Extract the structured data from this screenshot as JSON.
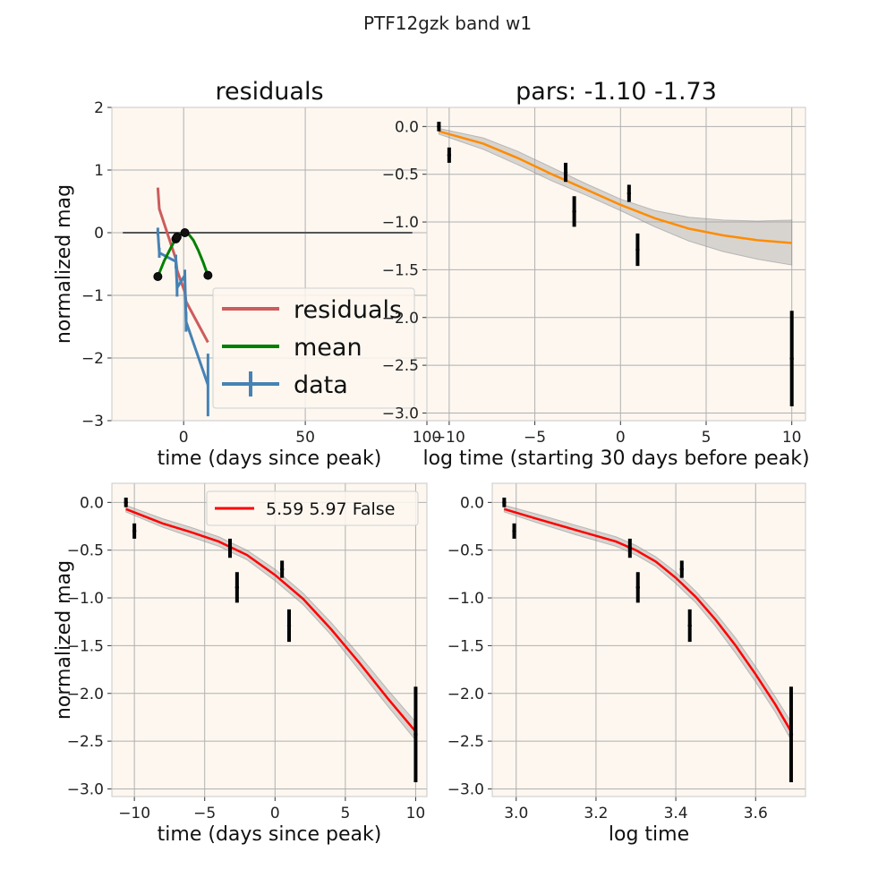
{
  "figure": {
    "suptitle": "PTF12gzk band w1"
  },
  "colors": {
    "axes_bg": "#fdf7f0",
    "grid": "#b0b0b0",
    "spine": "#c8c8c8",
    "residuals": "#cd5c5c",
    "mean": "#008000",
    "data": "#4682b4",
    "baseline": "#555555",
    "fit_orange": "#ff8c00",
    "fit_red": "#ff0000",
    "band": "#a9a9a9",
    "points": "#000000"
  },
  "chart_data": [
    {
      "id": "residuals",
      "type": "line",
      "title": "residuals",
      "xlabel": "time (days since peak)",
      "ylabel": "normalized mag",
      "xlim": [
        -29.5,
        100
      ],
      "ylim": [
        -3,
        2
      ],
      "xticks": [
        0,
        50,
        100
      ],
      "yticks": [
        -3,
        -2,
        -1,
        0,
        1,
        2
      ],
      "xtick_labels": [
        "0",
        "50",
        "100"
      ],
      "ytick_labels": [
        "−3",
        "−2",
        "−1",
        "0",
        "1",
        "2"
      ],
      "grid": true,
      "legend": {
        "position": "lower-right",
        "entries": [
          "residuals",
          "mean",
          "data"
        ]
      },
      "baseline": {
        "x": [
          -25,
          94
        ],
        "y": 0
      },
      "series": [
        {
          "name": "residuals",
          "x": [
            -10.6,
            -10,
            -3.2,
            -2.7,
            0.5,
            1,
            10
          ],
          "y": [
            0.72,
            0.38,
            -0.42,
            -0.6,
            -0.95,
            -1.1,
            -1.75
          ]
        },
        {
          "name": "mean",
          "x": [
            -10.6,
            -8,
            -5,
            -3,
            -1,
            0.5,
            2,
            4,
            6,
            8,
            10
          ],
          "y": [
            -0.7,
            -0.45,
            -0.22,
            -0.08,
            -0.02,
            0.0,
            -0.02,
            -0.12,
            -0.28,
            -0.47,
            -0.69
          ]
        },
        {
          "name": "data",
          "x": [
            -10.6,
            -10,
            -3.2,
            -2.7,
            0.5,
            1,
            10
          ],
          "y": [
            0.02,
            -0.32,
            -0.46,
            -0.88,
            -0.68,
            -1.42,
            -2.43
          ],
          "yerr": [
            0.06,
            0.08,
            0.11,
            0.14,
            0.09,
            0.16,
            0.5
          ]
        }
      ],
      "markers": {
        "x": [
          -10.6,
          -3.2,
          -2.7,
          0.5,
          10
        ],
        "y": [
          -0.7,
          -0.1,
          -0.07,
          0.0,
          -0.68
        ]
      }
    },
    {
      "id": "pars",
      "type": "line",
      "title": "pars: -1.10 -1.73",
      "xlabel": "log time (starting 30 days before peak)",
      "ylabel": "",
      "xlim": [
        -11.3,
        10.8
      ],
      "ylim": [
        -3.08,
        0.2
      ],
      "xticks": [
        -10,
        -5,
        0,
        5,
        10
      ],
      "yticks": [
        -3,
        -2.5,
        -2,
        -1.5,
        -1,
        -0.5,
        0
      ],
      "xtick_labels": [
        "−10",
        "−5",
        "0",
        "5",
        "10"
      ],
      "ytick_labels": [
        "−3.0",
        "−2.5",
        "−2.0",
        "−1.5",
        "−1.0",
        "−0.5",
        "0.0"
      ],
      "grid": true,
      "points": {
        "x": [
          -10.6,
          -10,
          -3.2,
          -2.7,
          0.5,
          1,
          10
        ],
        "y": [
          0.0,
          -0.3,
          -0.48,
          -0.89,
          -0.7,
          -1.29,
          -2.43
        ],
        "yerr": [
          0.05,
          0.08,
          0.1,
          0.16,
          0.09,
          0.17,
          0.5
        ]
      },
      "fit": {
        "x": [
          -10.6,
          -8,
          -6,
          -4,
          -2,
          0,
          2,
          4,
          6,
          8,
          10
        ],
        "y": [
          -0.05,
          -0.18,
          -0.33,
          -0.5,
          -0.66,
          -0.82,
          -0.96,
          -1.07,
          -1.14,
          -1.19,
          -1.22
        ],
        "band_upper": [
          -0.02,
          -0.12,
          -0.26,
          -0.43,
          -0.6,
          -0.76,
          -0.88,
          -0.95,
          -0.98,
          -0.99,
          -0.98
        ],
        "band_lower": [
          -0.08,
          -0.24,
          -0.4,
          -0.57,
          -0.72,
          -0.88,
          -1.05,
          -1.2,
          -1.31,
          -1.39,
          -1.45
        ]
      }
    },
    {
      "id": "time",
      "type": "line",
      "title": "",
      "xlabel": "time (days since peak)",
      "ylabel": "normalized mag",
      "xlim": [
        -11.6,
        10.8
      ],
      "ylim": [
        -3.08,
        0.2
      ],
      "xticks": [
        -10,
        -5,
        0,
        5,
        10
      ],
      "yticks": [
        -3,
        -2.5,
        -2,
        -1.5,
        -1,
        -0.5,
        0
      ],
      "xtick_labels": [
        "−10",
        "−5",
        "0",
        "5",
        "10"
      ],
      "ytick_labels": [
        "−3.0",
        "−2.5",
        "−2.0",
        "−1.5",
        "−1.0",
        "−0.5",
        "0.0"
      ],
      "grid": true,
      "legend": {
        "position": "upper-right",
        "entries": [
          "5.59 5.97 False"
        ]
      },
      "points": {
        "x": [
          -10.6,
          -10,
          -3.2,
          -2.7,
          0.5,
          1,
          10
        ],
        "y": [
          0.0,
          -0.3,
          -0.48,
          -0.89,
          -0.7,
          -1.29,
          -2.43
        ],
        "yerr": [
          0.05,
          0.08,
          0.1,
          0.16,
          0.09,
          0.17,
          0.5
        ]
      },
      "fit": {
        "name": "5.59 5.97 False",
        "x": [
          -10.6,
          -8,
          -6,
          -4,
          -2,
          0,
          2,
          4,
          6,
          8,
          10
        ],
        "y": [
          -0.07,
          -0.22,
          -0.31,
          -0.41,
          -0.55,
          -0.76,
          -1.01,
          -1.33,
          -1.68,
          -2.05,
          -2.4
        ],
        "band_upper": [
          -0.03,
          -0.17,
          -0.26,
          -0.36,
          -0.5,
          -0.7,
          -0.95,
          -1.26,
          -1.6,
          -1.96,
          -2.3
        ],
        "band_lower": [
          -0.1,
          -0.26,
          -0.36,
          -0.46,
          -0.6,
          -0.82,
          -1.07,
          -1.39,
          -1.76,
          -2.13,
          -2.49
        ]
      }
    },
    {
      "id": "logtime",
      "type": "line",
      "title": "",
      "xlabel": "log time",
      "ylabel": "",
      "xlim": [
        2.94,
        3.725
      ],
      "ylim": [
        -3.08,
        0.2
      ],
      "xticks": [
        3.0,
        3.2,
        3.4,
        3.6
      ],
      "yticks": [
        -3,
        -2.5,
        -2,
        -1.5,
        -1,
        -0.5,
        0
      ],
      "xtick_labels": [
        "3.0",
        "3.2",
        "3.4",
        "3.6"
      ],
      "ytick_labels": [
        "−3.0",
        "−2.5",
        "−2.0",
        "−1.5",
        "−1.0",
        "−0.5",
        "0.0"
      ],
      "grid": true,
      "points": {
        "x": [
          2.97,
          2.995,
          3.285,
          3.305,
          3.415,
          3.435,
          3.689
        ],
        "y": [
          0.0,
          -0.3,
          -0.48,
          -0.89,
          -0.7,
          -1.29,
          -2.43
        ],
        "yerr": [
          0.05,
          0.08,
          0.1,
          0.16,
          0.09,
          0.17,
          0.5
        ]
      },
      "fit": {
        "x": [
          2.97,
          3.05,
          3.15,
          3.25,
          3.3,
          3.35,
          3.4,
          3.45,
          3.5,
          3.55,
          3.6,
          3.65,
          3.689
        ],
        "y": [
          -0.07,
          -0.17,
          -0.29,
          -0.41,
          -0.5,
          -0.62,
          -0.79,
          -0.99,
          -1.23,
          -1.5,
          -1.8,
          -2.12,
          -2.4
        ],
        "band_upper": [
          -0.03,
          -0.12,
          -0.24,
          -0.36,
          -0.45,
          -0.57,
          -0.73,
          -0.93,
          -1.16,
          -1.42,
          -1.72,
          -2.04,
          -2.3
        ],
        "band_lower": [
          -0.1,
          -0.21,
          -0.34,
          -0.46,
          -0.55,
          -0.67,
          -0.85,
          -1.05,
          -1.3,
          -1.58,
          -1.88,
          -2.2,
          -2.49
        ]
      }
    }
  ]
}
